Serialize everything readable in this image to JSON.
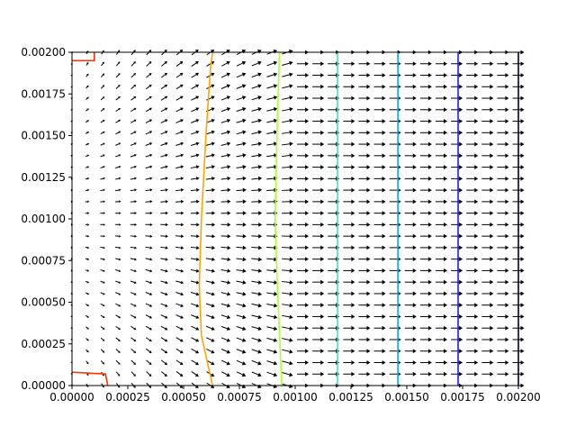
{
  "chart_data": {
    "type": "quiver",
    "title": "",
    "xlabel": "",
    "ylabel": "",
    "xlim": [
      0,
      0.002
    ],
    "ylim": [
      0,
      0.002
    ],
    "grid": false,
    "legend": "none",
    "x_ticks": [
      "0.00000",
      "0.00025",
      "0.00050",
      "0.00075",
      "0.00100",
      "0.00125",
      "0.00150",
      "0.00175",
      "0.00200"
    ],
    "y_ticks": [
      "0.00000",
      "0.00025",
      "0.00050",
      "0.00075",
      "0.00100",
      "0.00125",
      "0.00150",
      "0.00175",
      "0.00200"
    ],
    "quiver_grid": {
      "nx": 30,
      "ny": 30,
      "x_range": [
        0,
        0.002
      ],
      "y_range": [
        0,
        0.002
      ],
      "arrow_color": "#000000",
      "field": "flow from left edge toward right edge; weak near x=0, converging toward mid-height near left, uniform rightward beyond x≈0.00100"
    },
    "contour_lines": [
      {
        "color": "#ff3300",
        "points": [
          [
            0,
            0.00195
          ],
          [
            0.0001,
            0.00195
          ],
          [
            0.0001,
            0.002
          ]
        ]
      },
      {
        "color": "#ff3300",
        "points": [
          [
            0,
            8e-05
          ],
          [
            0.00015,
            7e-05
          ],
          [
            0.00016,
            0.0
          ]
        ]
      },
      {
        "color": "#ffa500",
        "points": [
          [
            0.00063,
            0.0
          ],
          [
            0.00058,
            0.0003
          ],
          [
            0.00057,
            0.0006
          ],
          [
            0.00058,
            0.001
          ],
          [
            0.0006,
            0.0015
          ],
          [
            0.00062,
            0.0019
          ],
          [
            0.00063,
            0.002
          ]
        ]
      },
      {
        "color": "#adff2f",
        "points": [
          [
            0.00094,
            0.0
          ],
          [
            0.00092,
            0.0006
          ],
          [
            0.00091,
            0.001
          ],
          [
            0.00092,
            0.0016
          ],
          [
            0.00093,
            0.002
          ]
        ]
      },
      {
        "color": "#40e0c0",
        "points": [
          [
            0.00119,
            0.0
          ],
          [
            0.00119,
            0.001
          ],
          [
            0.00119,
            0.002
          ]
        ]
      },
      {
        "color": "#00aaee",
        "points": [
          [
            0.00146,
            0.0
          ],
          [
            0.00146,
            0.001
          ],
          [
            0.00146,
            0.002
          ]
        ]
      },
      {
        "color": "#1a1aff",
        "points": [
          [
            0.00173,
            0.0
          ],
          [
            0.00173,
            0.001
          ],
          [
            0.00173,
            0.002
          ]
        ]
      },
      {
        "color": "#000080",
        "points": [
          [
            0.002,
            0.0
          ],
          [
            0.002,
            0.002
          ]
        ]
      }
    ]
  }
}
